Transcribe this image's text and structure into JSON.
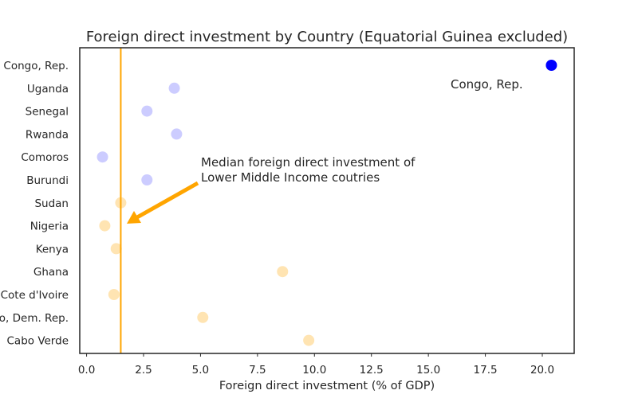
{
  "chart_data": {
    "type": "scatter",
    "title": "Foreign direct investment by Country (Equatorial Guinea excluded)",
    "xlabel": "Foreign direct investment (% of GDP)",
    "ylabel": "",
    "xlim": [
      -0.3,
      21.4
    ],
    "xticks": [
      0.0,
      2.5,
      5.0,
      7.5,
      10.0,
      12.5,
      15.0,
      17.5,
      20.0
    ],
    "xtick_labels": [
      "0.0",
      "2.5",
      "5.0",
      "7.5",
      "10.0",
      "12.5",
      "15.0",
      "17.5",
      "20.0"
    ],
    "grid": false,
    "categories": [
      "Congo, Rep.",
      "Uganda",
      "Senegal",
      "Rwanda",
      "Comoros",
      "Burundi",
      "Sudan",
      "Nigeria",
      "Kenya",
      "Ghana",
      "Cote d'Ivoire",
      "Congo, Dem. Rep.",
      "Cabo Verde"
    ],
    "category_labels": [
      "Congo, Rep.",
      "Uganda",
      "Senegal",
      "Rwanda",
      "Comoros",
      "Burundi",
      "Sudan",
      "Nigeria",
      "Kenya",
      "Ghana",
      "Cote d'Ivoire",
      "o, Dem. Rep.",
      "Cabo Verde"
    ],
    "series": [
      {
        "values": [
          20.4,
          null,
          null,
          null,
          null,
          null,
          null,
          null,
          null,
          null,
          null,
          null,
          null
        ],
        "color": "#0000ff",
        "alpha": 1.0
      },
      {
        "values": [
          null,
          3.85,
          2.65,
          3.95,
          0.7,
          2.65,
          null,
          null,
          null,
          null,
          null,
          null,
          null
        ],
        "color": "#0000ff",
        "alpha": 0.2
      },
      {
        "values": [
          null,
          null,
          null,
          null,
          null,
          null,
          1.5,
          0.8,
          1.3,
          8.6,
          1.2,
          5.1,
          9.75
        ],
        "color": "#ffa500",
        "alpha": 0.3
      }
    ],
    "median_line": {
      "x": 1.5,
      "color": "#ffa500"
    },
    "annotations": [
      {
        "text": "Congo, Rep."
      },
      {
        "text_lines": [
          "Median foreign direct investment of",
          "Lower Middle Income coutries"
        ],
        "arrow_color": "#ffa500"
      }
    ]
  }
}
